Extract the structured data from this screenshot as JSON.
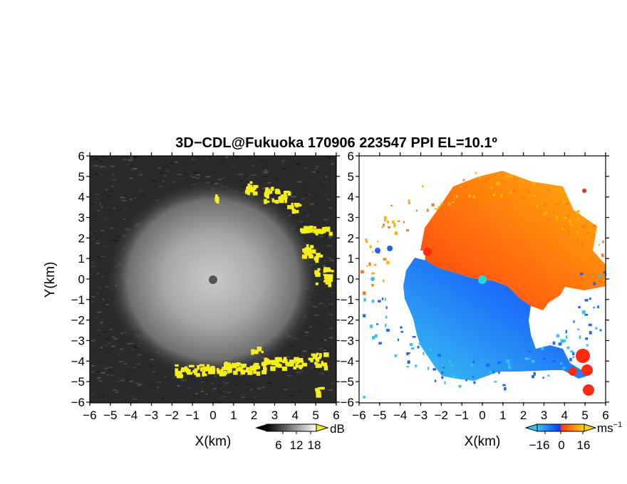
{
  "title": "3D−CDL@Fukuoka 170906 223547 PPI EL=10.1º",
  "colors": {
    "yellow_mask": "#f5ee1a",
    "velocity_pos_dark": "#ff3d10",
    "velocity_pos_light": "#ffb20a",
    "velocity_neg_dark": "#0a3cff",
    "velocity_neg_light": "#39c2f0",
    "center_marker_left": "#555555",
    "center_marker_right": "#22d8e0"
  },
  "chart_data": [
    {
      "type": "heatmap",
      "panel": "reflectivity / SNR",
      "xlabel": "X(km)",
      "ylabel": "Y(km)",
      "xlim": [
        -6,
        6
      ],
      "ylim": [
        -6,
        6
      ],
      "xticks": [
        "−6",
        "−5",
        "−4",
        "−3",
        "−2",
        "−1",
        "0",
        "1",
        "2",
        "3",
        "4",
        "5",
        "6"
      ],
      "yticks": [
        "6",
        "5",
        "4",
        "3",
        "2",
        "1",
        "0",
        "−1",
        "−2",
        "−3",
        "−4",
        "−5",
        "−6"
      ],
      "colorbar": {
        "unit": "dB",
        "ticks": [
          "6",
          "12",
          "18"
        ],
        "range": [
          0,
          24
        ]
      },
      "center_marker": [
        0,
        0
      ]
    },
    {
      "type": "heatmap",
      "panel": "Doppler velocity",
      "xlabel": "X(km)",
      "ylabel": "",
      "xlim": [
        -6,
        6
      ],
      "ylim": [
        -6,
        6
      ],
      "xticks": [
        "−6",
        "−5",
        "−4",
        "−3",
        "−2",
        "−1",
        "0",
        "1",
        "2",
        "3",
        "4",
        "5",
        "6"
      ],
      "yticks": [
        "6",
        "5",
        "4",
        "3",
        "2",
        "1",
        "0",
        "−1",
        "−2",
        "−3",
        "−4",
        "−5",
        "−6"
      ],
      "colorbar": {
        "unit": "ms",
        "unit_sup": "−1",
        "ticks": [
          "−16",
          "0",
          "16"
        ],
        "range": [
          -24,
          24
        ]
      },
      "center_marker": [
        0,
        0
      ]
    }
  ]
}
